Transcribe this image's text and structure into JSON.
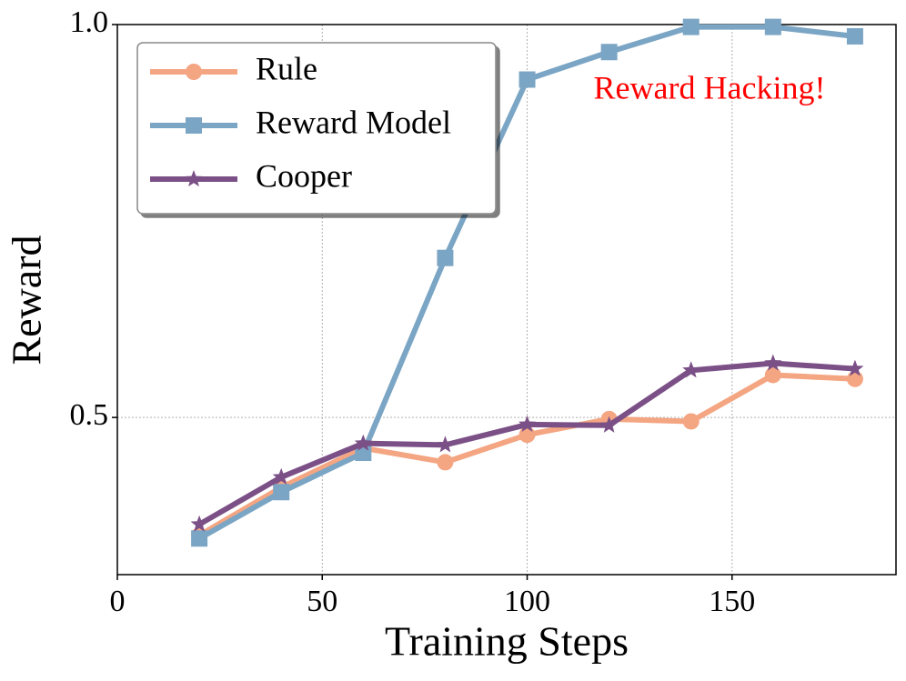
{
  "chart_data": {
    "type": "line",
    "x_label": "Training Steps",
    "y_label": "Reward",
    "annotation": "Reward Hacking!",
    "annotation_color": "#ff0000",
    "x": [
      20,
      40,
      60,
      80,
      100,
      120,
      140,
      160,
      180
    ],
    "series": [
      {
        "name": "Rule",
        "color": "#f4a582",
        "marker": "circle",
        "values": [
          0.35,
          0.411,
          0.461,
          0.443,
          0.478,
          0.498,
          0.495,
          0.554,
          0.549
        ]
      },
      {
        "name": "Reward Model",
        "color": "#7ba5c4",
        "marker": "square",
        "values": [
          0.346,
          0.405,
          0.455,
          0.703,
          0.93,
          0.965,
          0.997,
          0.997,
          0.985
        ]
      },
      {
        "name": "Cooper",
        "color": "#7b5087",
        "marker": "star",
        "values": [
          0.364,
          0.424,
          0.467,
          0.465,
          0.491,
          0.49,
          0.56,
          0.569,
          0.562
        ]
      }
    ],
    "xlim": [
      0,
      190
    ],
    "ylim": [
      0.3,
      1.0
    ],
    "xticks": [
      0,
      50,
      100,
      150
    ],
    "yticks": [
      0.5,
      {
        "value": 1,
        "label": "1.0"
      }
    ],
    "grid": true,
    "legend": "upper left"
  }
}
